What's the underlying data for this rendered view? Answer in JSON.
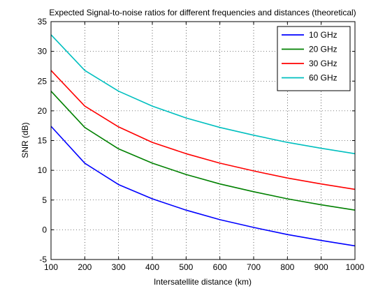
{
  "chart_data": {
    "type": "line",
    "title": "Expected Signal-to-noise ratios for different frequencies and distances (theoretical)",
    "xlabel": "Intersatellite distance (km)",
    "ylabel": "SNR (dB)",
    "xlim": [
      100,
      1000
    ],
    "ylim": [
      -5,
      35
    ],
    "xticks": [
      100,
      200,
      300,
      400,
      500,
      600,
      700,
      800,
      900,
      1000
    ],
    "yticks": [
      -5,
      0,
      5,
      10,
      15,
      20,
      25,
      30,
      35
    ],
    "grid": true,
    "legend_position": "top-right",
    "x": [
      100,
      200,
      300,
      400,
      500,
      600,
      700,
      800,
      900,
      1000
    ],
    "series": [
      {
        "name": "10 GHz",
        "color": "#0000ff",
        "values": [
          17.4,
          11.2,
          7.6,
          5.2,
          3.3,
          1.7,
          0.4,
          -0.8,
          -1.8,
          -2.7
        ]
      },
      {
        "name": "20 GHz",
        "color": "#008000",
        "values": [
          23.3,
          17.2,
          13.6,
          11.2,
          9.3,
          7.7,
          6.4,
          5.2,
          4.2,
          3.3
        ]
      },
      {
        "name": "30 GHz",
        "color": "#ff0000",
        "values": [
          26.8,
          20.8,
          17.3,
          14.7,
          12.8,
          11.2,
          9.9,
          8.7,
          7.7,
          6.8
        ]
      },
      {
        "name": "60 GHz",
        "color": "#00bfbf",
        "values": [
          32.8,
          26.8,
          23.3,
          20.8,
          18.8,
          17.2,
          15.9,
          14.7,
          13.7,
          12.8
        ]
      }
    ]
  }
}
